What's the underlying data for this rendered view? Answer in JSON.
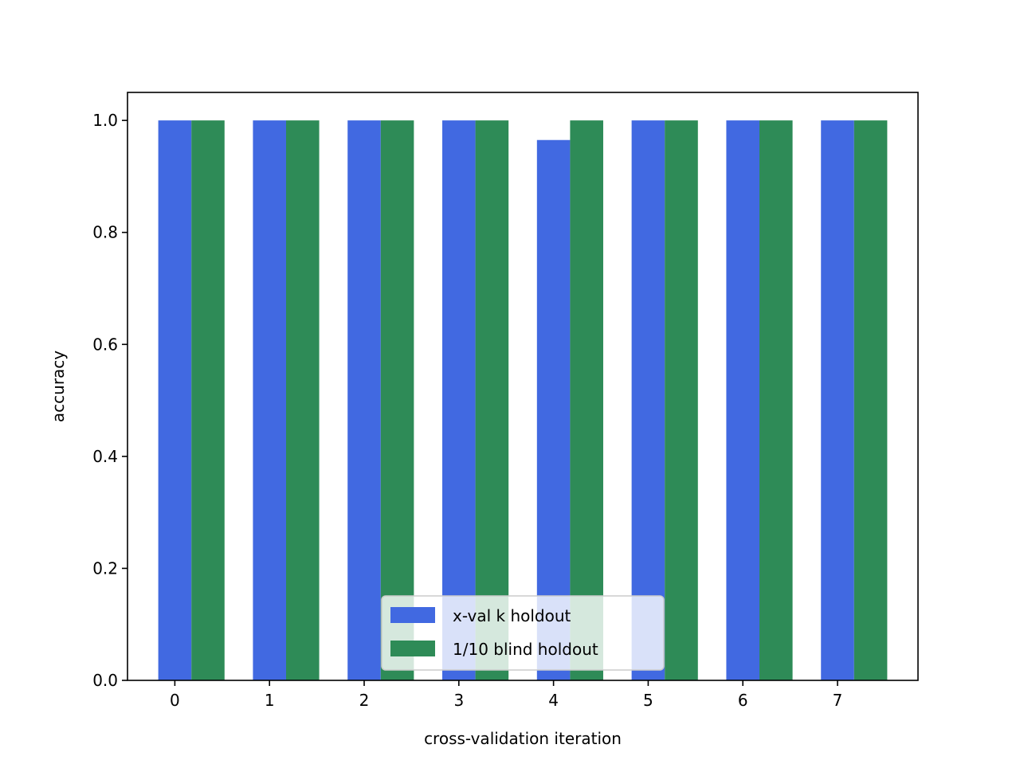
{
  "chart_data": {
    "type": "bar",
    "title": "",
    "xlabel": "cross-validation iteration",
    "ylabel": "accuracy",
    "categories": [
      "0",
      "1",
      "2",
      "3",
      "4",
      "5",
      "6",
      "7"
    ],
    "yticks": [
      "0.0",
      "0.2",
      "0.4",
      "0.6",
      "0.8",
      "1.0"
    ],
    "ylim": [
      0,
      1.05
    ],
    "grid": false,
    "legend_position": "bottom-center",
    "series": [
      {
        "name": "x-val k holdout",
        "color": "#4169e1",
        "values": [
          1.0,
          1.0,
          1.0,
          1.0,
          0.965,
          1.0,
          1.0,
          1.0
        ]
      },
      {
        "name": "1/10 blind holdout",
        "color": "#2e8b57",
        "values": [
          1.0,
          1.0,
          1.0,
          1.0,
          1.0,
          1.0,
          1.0,
          1.0
        ]
      }
    ]
  }
}
